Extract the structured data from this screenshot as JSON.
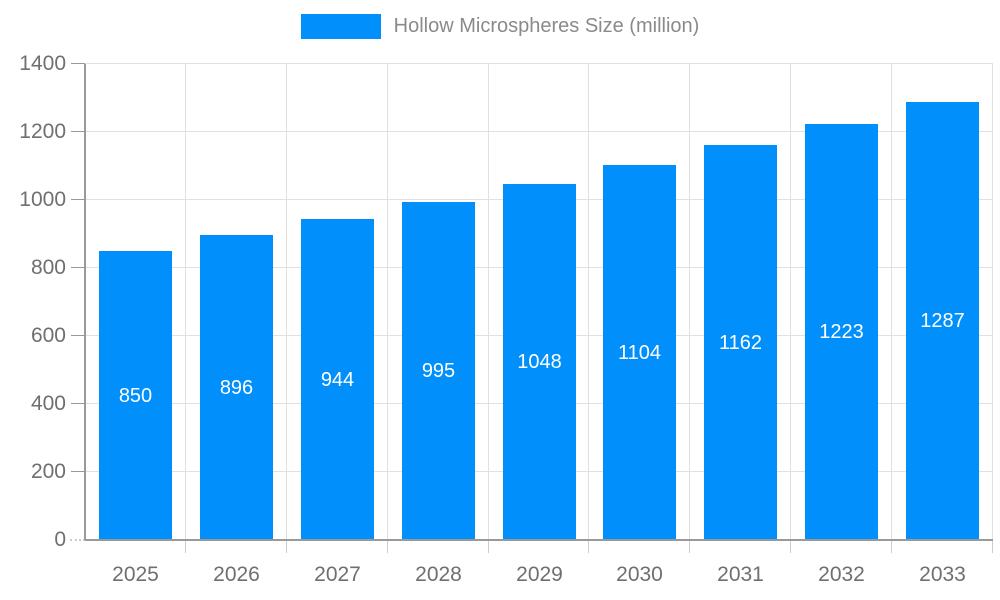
{
  "chart_data": {
    "type": "bar",
    "title": "Hollow Microspheres Size (million)",
    "legend_position": "top",
    "categories": [
      "2025",
      "2026",
      "2027",
      "2028",
      "2029",
      "2030",
      "2031",
      "2032",
      "2033"
    ],
    "values": [
      850,
      896,
      944,
      995,
      1048,
      1104,
      1162,
      1223,
      1287
    ],
    "xlabel": "",
    "ylabel": "",
    "ylim": [
      0,
      1400
    ],
    "yticks": [
      0,
      200,
      400,
      600,
      800,
      1000,
      1200,
      1400
    ],
    "grid": true,
    "colors": {
      "bar": "#008FFB",
      "value_label": "#FFFFFF",
      "axis_label": "#6F6F6F",
      "legend_text": "#8A8A8A",
      "gridline": "#E1E1E1",
      "axis_line": "#999999",
      "minor_tick": "#CCCCCC"
    }
  }
}
